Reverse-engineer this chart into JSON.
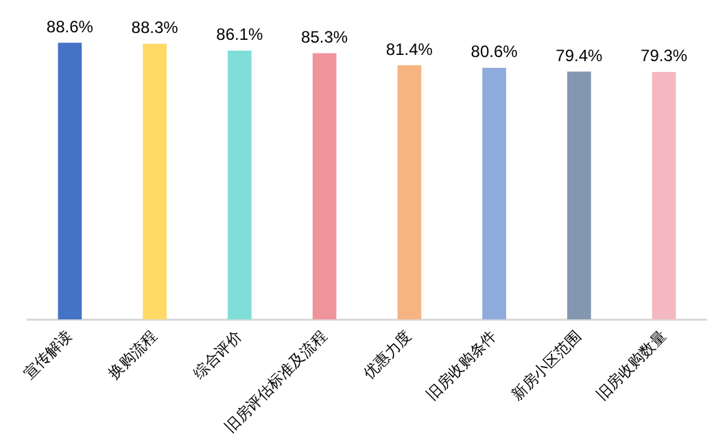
{
  "chart_data": {
    "type": "bar",
    "categories": [
      "宣传解读",
      "换购流程",
      "综合评价",
      "旧房评估标准及流程",
      "优惠力度",
      "旧房收购条件",
      "新房小区范围",
      "旧房收购数量"
    ],
    "values": [
      88.6,
      88.3,
      86.1,
      85.3,
      81.4,
      80.6,
      79.4,
      79.3
    ],
    "colors": [
      "#4472c4",
      "#ffd966",
      "#7fded8",
      "#f0949c",
      "#f5b482",
      "#8faadc",
      "#8497b0",
      "#f4b8c0"
    ],
    "value_labels": [
      "88.6%",
      "88.3%",
      "86.1%",
      "85.3%",
      "81.4%",
      "80.6%",
      "79.4%",
      "79.3%"
    ],
    "tick_labels": "x",
    "grid": false,
    "legend": false
  }
}
